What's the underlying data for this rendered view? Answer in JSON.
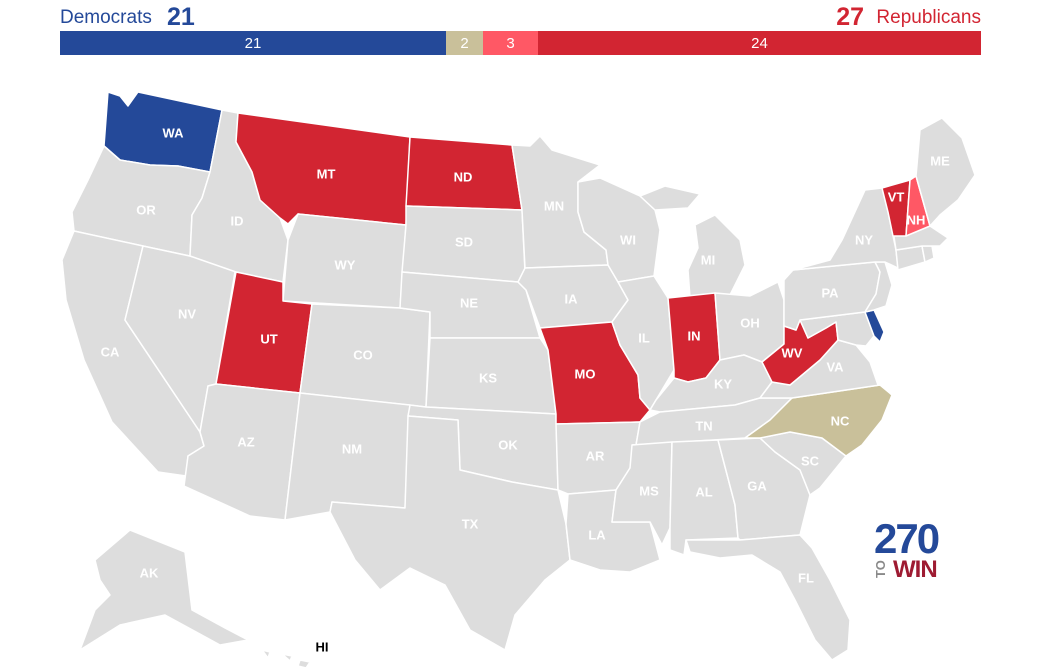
{
  "summary": {
    "dem_label": "Democrats",
    "dem_total": "21",
    "rep_total": "27",
    "rep_label": "Republicans",
    "segments": {
      "dem": "21",
      "tossup": "2",
      "lean_rep": "3",
      "rep": "24"
    }
  },
  "colors": {
    "dem": "#244999",
    "tossup": "#c9c09a",
    "lean_rep": "#ff5865",
    "rep": "#d22532",
    "none": "#dddddd"
  },
  "states": {
    "WA": {
      "label": "WA",
      "status": "dem"
    },
    "OR": {
      "label": "OR",
      "status": "none"
    },
    "CA": {
      "label": "CA",
      "status": "none"
    },
    "NV": {
      "label": "NV",
      "status": "none"
    },
    "ID": {
      "label": "ID",
      "status": "none"
    },
    "MT": {
      "label": "MT",
      "status": "rep"
    },
    "WY": {
      "label": "WY",
      "status": "none"
    },
    "UT": {
      "label": "UT",
      "status": "rep"
    },
    "AZ": {
      "label": "AZ",
      "status": "none"
    },
    "CO": {
      "label": "CO",
      "status": "none"
    },
    "NM": {
      "label": "NM",
      "status": "none"
    },
    "ND": {
      "label": "ND",
      "status": "rep"
    },
    "SD": {
      "label": "SD",
      "status": "none"
    },
    "NE": {
      "label": "NE",
      "status": "none"
    },
    "KS": {
      "label": "KS",
      "status": "none"
    },
    "OK": {
      "label": "OK",
      "status": "none"
    },
    "TX": {
      "label": "TX",
      "status": "none"
    },
    "MN": {
      "label": "MN",
      "status": "none"
    },
    "IA": {
      "label": "IA",
      "status": "none"
    },
    "MO": {
      "label": "MO",
      "status": "rep"
    },
    "AR": {
      "label": "AR",
      "status": "none"
    },
    "LA": {
      "label": "LA",
      "status": "none"
    },
    "WI": {
      "label": "WI",
      "status": "none"
    },
    "IL": {
      "label": "IL",
      "status": "none"
    },
    "MI": {
      "label": "MI",
      "status": "none"
    },
    "IN": {
      "label": "IN",
      "status": "rep"
    },
    "OH": {
      "label": "OH",
      "status": "none"
    },
    "KY": {
      "label": "KY",
      "status": "none"
    },
    "TN": {
      "label": "TN",
      "status": "none"
    },
    "MS": {
      "label": "MS",
      "status": "none"
    },
    "AL": {
      "label": "AL",
      "status": "none"
    },
    "GA": {
      "label": "GA",
      "status": "none"
    },
    "FL": {
      "label": "FL",
      "status": "none"
    },
    "SC": {
      "label": "SC",
      "status": "none"
    },
    "NC": {
      "label": "NC",
      "status": "tossup"
    },
    "VA": {
      "label": "VA",
      "status": "none"
    },
    "WV": {
      "label": "WV",
      "status": "rep"
    },
    "PA": {
      "label": "PA",
      "status": "none"
    },
    "NY": {
      "label": "NY",
      "status": "none"
    },
    "VT": {
      "label": "VT",
      "status": "rep"
    },
    "NH": {
      "label": "NH",
      "status": "lean_rep"
    },
    "ME": {
      "label": "ME",
      "status": "none"
    },
    "MA": {
      "label": "",
      "status": "none"
    },
    "CT": {
      "label": "",
      "status": "none"
    },
    "RI": {
      "label": "",
      "status": "none"
    },
    "NJ": {
      "label": "",
      "status": "none"
    },
    "DE": {
      "label": "",
      "status": "dem"
    },
    "MD": {
      "label": "",
      "status": "none"
    },
    "AK": {
      "label": "AK",
      "status": "none"
    },
    "HI": {
      "label": "HI",
      "status": "none"
    }
  },
  "logo": {
    "number": "270",
    "to": "TO",
    "win": "WIN"
  }
}
